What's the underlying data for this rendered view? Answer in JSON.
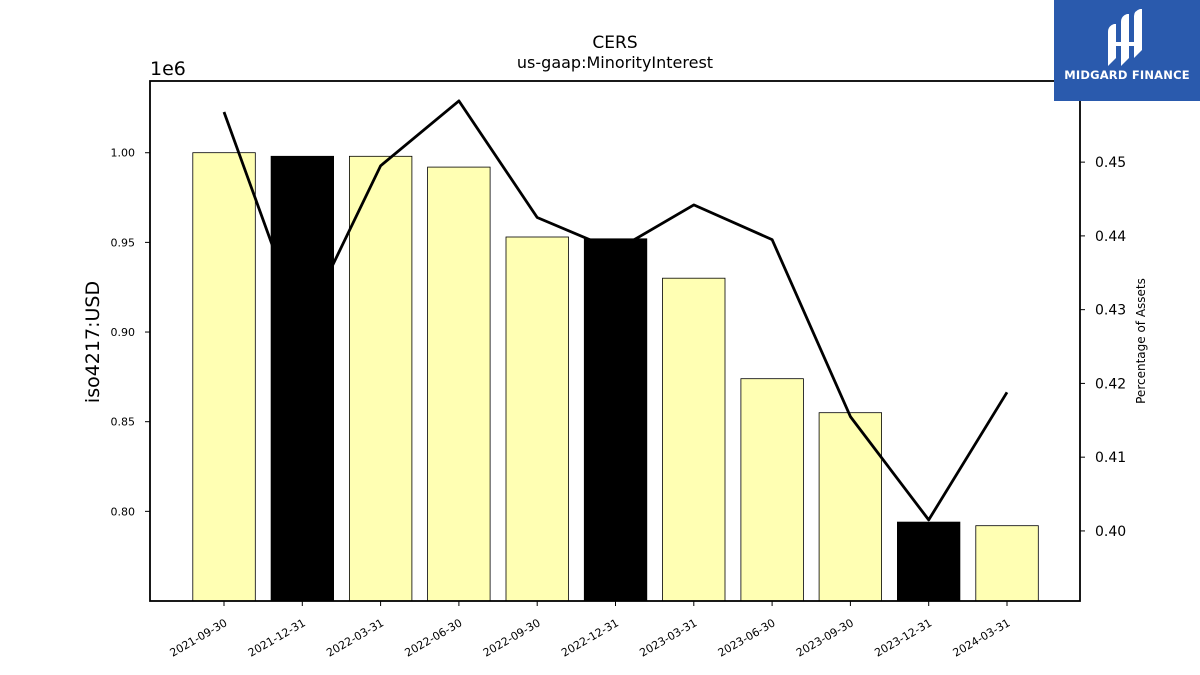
{
  "branding": {
    "logo_text": "MIDGARD FINANCE",
    "logo_color": "#2a5aad"
  },
  "chart_data": {
    "type": "bar",
    "title": "CERS",
    "subtitle": "us-gaap:MinorityInterest",
    "ylabel": "iso4217:USD",
    "y2label": "Percentage of Assets",
    "y_offset_label": "1e6",
    "categories": [
      "2021-09-30",
      "2021-12-31",
      "2022-03-31",
      "2022-06-30",
      "2022-09-30",
      "2022-12-31",
      "2023-03-31",
      "2023-06-30",
      "2023-09-30",
      "2023-12-31",
      "2024-03-31"
    ],
    "series": [
      {
        "type": "bar",
        "axis": "left",
        "values": [
          1000000,
          998000,
          998000,
          992000,
          953000,
          952000,
          930000,
          874000,
          855000,
          794000,
          792000
        ],
        "colors": [
          "#ffffb3",
          "#000000",
          "#ffffb3",
          "#ffffb3",
          "#ffffb3",
          "#000000",
          "#ffffb3",
          "#ffffb3",
          "#ffffb3",
          "#000000",
          "#ffffb3"
        ]
      },
      {
        "type": "line",
        "axis": "right",
        "values": [
          0.4568,
          0.4275,
          0.4495,
          0.4583,
          0.4425,
          0.438,
          0.4442,
          0.4395,
          0.4155,
          0.4015,
          0.4188
        ],
        "color": "#000000"
      }
    ],
    "ylim": [
      750000,
      1040000
    ],
    "y_ticks": [
      800000,
      850000,
      900000,
      950000,
      1000000
    ],
    "y_tick_labels": [
      "0.80",
      "0.85",
      "0.90",
      "0.95",
      "1.00"
    ],
    "y2lim": [
      0.3905,
      0.461
    ],
    "y2_ticks": [
      0.4,
      0.41,
      0.42,
      0.43,
      0.44,
      0.45
    ],
    "y2_tick_labels": [
      "0.40",
      "0.41",
      "0.42",
      "0.43",
      "0.44",
      "0.45"
    ],
    "grid": false
  }
}
